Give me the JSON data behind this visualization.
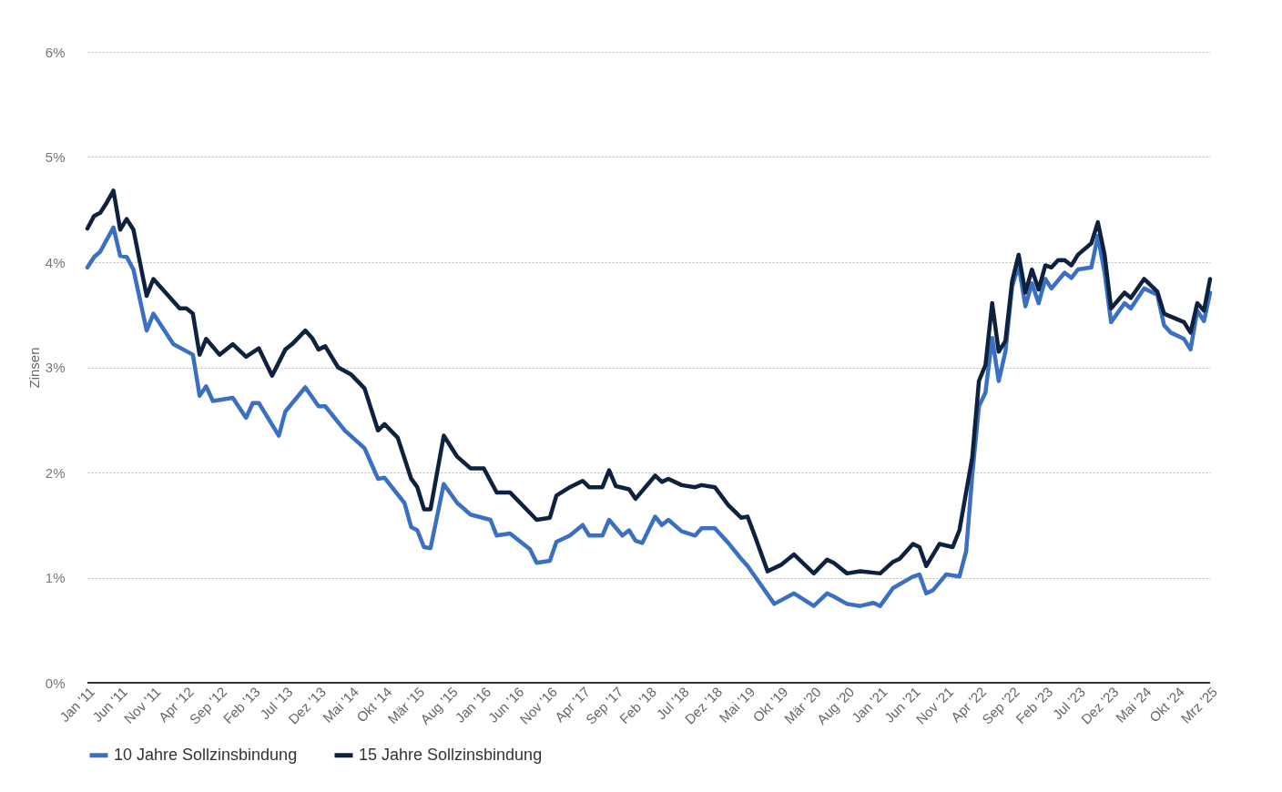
{
  "chart_data": {
    "type": "line",
    "ylabel": "Zinsen",
    "legend": "bottom",
    "grid": "y",
    "marker": "none",
    "line_style": "solid",
    "xlim": [
      "2011-01",
      "2025-03"
    ],
    "ylim": [
      0,
      6
    ],
    "yticks": [
      {
        "value": 0,
        "label": "0%"
      },
      {
        "value": 1,
        "label": "1%"
      },
      {
        "value": 2,
        "label": "2%"
      },
      {
        "value": 3,
        "label": "3%"
      },
      {
        "value": 4,
        "label": "4%"
      },
      {
        "value": 5,
        "label": "5%"
      },
      {
        "value": 6,
        "label": "6%"
      }
    ],
    "xticks": [
      {
        "value": "2011-01",
        "label": "Jan '11"
      },
      {
        "value": "2011-06",
        "label": "Jun '11"
      },
      {
        "value": "2011-11",
        "label": "Nov '11"
      },
      {
        "value": "2012-04",
        "label": "Apr '12"
      },
      {
        "value": "2012-09",
        "label": "Sep '12"
      },
      {
        "value": "2013-02",
        "label": "Feb '13"
      },
      {
        "value": "2013-07",
        "label": "Jul '13"
      },
      {
        "value": "2013-12",
        "label": "Dez '13"
      },
      {
        "value": "2014-05",
        "label": "Mai '14"
      },
      {
        "value": "2014-10",
        "label": "Okt '14"
      },
      {
        "value": "2015-03",
        "label": "Mär '15"
      },
      {
        "value": "2015-08",
        "label": "Aug '15"
      },
      {
        "value": "2016-01",
        "label": "Jan '16"
      },
      {
        "value": "2016-06",
        "label": "Jun '16"
      },
      {
        "value": "2016-11",
        "label": "Nov '16"
      },
      {
        "value": "2017-04",
        "label": "Apr '17"
      },
      {
        "value": "2017-09",
        "label": "Sep '17"
      },
      {
        "value": "2018-02",
        "label": "Feb '18"
      },
      {
        "value": "2018-07",
        "label": "Jul '18"
      },
      {
        "value": "2018-12",
        "label": "Dez '18"
      },
      {
        "value": "2019-05",
        "label": "Mai '19"
      },
      {
        "value": "2019-10",
        "label": "Okt '19"
      },
      {
        "value": "2020-03",
        "label": "Mär '20"
      },
      {
        "value": "2020-08",
        "label": "Aug '20"
      },
      {
        "value": "2021-01",
        "label": "Jan '21"
      },
      {
        "value": "2021-06",
        "label": "Jun '21"
      },
      {
        "value": "2021-11",
        "label": "Nov '21"
      },
      {
        "value": "2022-04",
        "label": "Apr '22"
      },
      {
        "value": "2022-09",
        "label": "Sep '22"
      },
      {
        "value": "2023-02",
        "label": "Feb '23"
      },
      {
        "value": "2023-07",
        "label": "Jul '23"
      },
      {
        "value": "2023-12",
        "label": "Dez '23"
      },
      {
        "value": "2024-05",
        "label": "Mai '24"
      },
      {
        "value": "2024-10",
        "label": "Okt '24"
      },
      {
        "value": "2025-03",
        "label": "Mrz '25"
      }
    ],
    "series": [
      {
        "name": "10 Jahre Sollzinsbindung",
        "color": "#3a6fc1",
        "x": [
          "2011-01",
          "2011-02",
          "2011-03",
          "2011-05",
          "2011-06",
          "2011-07",
          "2011-08",
          "2011-10",
          "2011-11",
          "2012-02",
          "2012-05",
          "2012-06",
          "2012-07",
          "2012-08",
          "2012-11",
          "2013-01",
          "2013-02",
          "2013-03",
          "2013-06",
          "2013-07",
          "2013-10",
          "2013-12",
          "2014-01",
          "2014-04",
          "2014-07",
          "2014-09",
          "2014-10",
          "2015-01",
          "2015-02",
          "2015-03",
          "2015-04",
          "2015-05",
          "2015-07",
          "2015-09",
          "2015-11",
          "2016-02",
          "2016-03",
          "2016-05",
          "2016-08",
          "2016-09",
          "2016-11",
          "2016-12",
          "2017-02",
          "2017-04",
          "2017-05",
          "2017-07",
          "2017-08",
          "2017-10",
          "2017-11",
          "2017-12",
          "2018-01",
          "2018-03",
          "2018-04",
          "2018-05",
          "2018-07",
          "2018-09",
          "2018-10",
          "2018-12",
          "2019-02",
          "2019-04",
          "2019-05",
          "2019-09",
          "2019-12",
          "2020-03",
          "2020-05",
          "2020-06",
          "2020-08",
          "2020-10",
          "2020-12",
          "2021-01",
          "2021-03",
          "2021-06",
          "2021-07",
          "2021-08",
          "2021-09",
          "2021-11",
          "2022-01",
          "2022-02",
          "2022-03",
          "2022-04",
          "2022-05",
          "2022-06",
          "2022-07",
          "2022-08",
          "2022-09",
          "2022-10",
          "2022-11",
          "2022-12",
          "2023-01",
          "2023-02",
          "2023-03",
          "2023-05",
          "2023-06",
          "2023-07",
          "2023-09",
          "2023-10",
          "2023-11",
          "2023-12",
          "2024-02",
          "2024-03",
          "2024-05",
          "2024-07",
          "2024-08",
          "2024-09",
          "2024-11",
          "2024-12",
          "2025-01",
          "2025-02",
          "2025-03"
        ],
        "values": [
          3.95,
          4.05,
          4.1,
          4.33,
          4.06,
          4.05,
          3.93,
          3.35,
          3.51,
          3.22,
          3.12,
          2.73,
          2.82,
          2.68,
          2.71,
          2.52,
          2.66,
          2.66,
          2.35,
          2.58,
          2.81,
          2.63,
          2.63,
          2.4,
          2.23,
          1.94,
          1.95,
          1.71,
          1.48,
          1.45,
          1.29,
          1.28,
          1.89,
          1.71,
          1.6,
          1.55,
          1.4,
          1.42,
          1.27,
          1.14,
          1.16,
          1.34,
          1.4,
          1.5,
          1.4,
          1.4,
          1.55,
          1.4,
          1.45,
          1.35,
          1.33,
          1.58,
          1.5,
          1.55,
          1.44,
          1.4,
          1.47,
          1.47,
          1.33,
          1.18,
          1.11,
          0.75,
          0.85,
          0.73,
          0.85,
          0.82,
          0.75,
          0.73,
          0.76,
          0.73,
          0.9,
          1.01,
          1.03,
          0.85,
          0.88,
          1.03,
          1.01,
          1.25,
          1.97,
          2.63,
          2.76,
          3.28,
          2.87,
          3.15,
          3.77,
          3.97,
          3.58,
          3.8,
          3.61,
          3.84,
          3.75,
          3.9,
          3.85,
          3.93,
          3.95,
          4.25,
          3.9,
          3.43,
          3.61,
          3.56,
          3.75,
          3.69,
          3.4,
          3.33,
          3.27,
          3.17,
          3.54,
          3.44,
          3.71
        ]
      },
      {
        "name": "15 Jahre Sollzinsbindung",
        "color": "#0e2240",
        "x": [
          "2011-01",
          "2011-02",
          "2011-03",
          "2011-04",
          "2011-05",
          "2011-06",
          "2011-07",
          "2011-08",
          "2011-10",
          "2011-11",
          "2011-12",
          "2012-03",
          "2012-04",
          "2012-05",
          "2012-06",
          "2012-07",
          "2012-09",
          "2012-11",
          "2013-01",
          "2013-03",
          "2013-05",
          "2013-07",
          "2013-08",
          "2013-10",
          "2013-11",
          "2013-12",
          "2014-01",
          "2014-03",
          "2014-05",
          "2014-07",
          "2014-09",
          "2014-10",
          "2014-12",
          "2015-02",
          "2015-03",
          "2015-04",
          "2015-05",
          "2015-07",
          "2015-09",
          "2015-11",
          "2016-01",
          "2016-03",
          "2016-05",
          "2016-09",
          "2016-11",
          "2016-12",
          "2017-02",
          "2017-04",
          "2017-05",
          "2017-07",
          "2017-08",
          "2017-09",
          "2017-11",
          "2017-12",
          "2018-03",
          "2018-04",
          "2018-05",
          "2018-07",
          "2018-09",
          "2018-10",
          "2018-12",
          "2019-02",
          "2019-04",
          "2019-05",
          "2019-06",
          "2019-08",
          "2019-10",
          "2019-12",
          "2020-03",
          "2020-05",
          "2020-06",
          "2020-08",
          "2020-10",
          "2021-01",
          "2021-03",
          "2021-04",
          "2021-06",
          "2021-07",
          "2021-08",
          "2021-10",
          "2021-12",
          "2022-01",
          "2022-03",
          "2022-04",
          "2022-05",
          "2022-06",
          "2022-07",
          "2022-08",
          "2022-09",
          "2022-10",
          "2022-11",
          "2022-12",
          "2023-01",
          "2023-02",
          "2023-03",
          "2023-04",
          "2023-05",
          "2023-06",
          "2023-07",
          "2023-09",
          "2023-10",
          "2023-11",
          "2023-12",
          "2024-02",
          "2024-03",
          "2024-05",
          "2024-07",
          "2024-08",
          "2024-11",
          "2024-12",
          "2025-01",
          "2025-02",
          "2025-03"
        ],
        "values": [
          4.32,
          4.44,
          4.47,
          4.57,
          4.68,
          4.31,
          4.41,
          4.31,
          3.68,
          3.84,
          3.77,
          3.56,
          3.56,
          3.51,
          3.12,
          3.27,
          3.12,
          3.22,
          3.1,
          3.18,
          2.92,
          3.17,
          3.22,
          3.35,
          3.28,
          3.17,
          3.2,
          3.0,
          2.93,
          2.8,
          2.4,
          2.46,
          2.33,
          1.94,
          1.86,
          1.65,
          1.65,
          2.35,
          2.15,
          2.04,
          2.04,
          1.81,
          1.81,
          1.55,
          1.57,
          1.78,
          1.86,
          1.92,
          1.86,
          1.86,
          2.02,
          1.87,
          1.84,
          1.75,
          1.97,
          1.91,
          1.94,
          1.88,
          1.86,
          1.88,
          1.86,
          1.69,
          1.57,
          1.58,
          1.41,
          1.06,
          1.12,
          1.22,
          1.04,
          1.17,
          1.14,
          1.04,
          1.06,
          1.04,
          1.15,
          1.18,
          1.32,
          1.29,
          1.11,
          1.32,
          1.29,
          1.45,
          2.14,
          2.87,
          3.02,
          3.61,
          3.15,
          3.25,
          3.82,
          4.07,
          3.71,
          3.93,
          3.74,
          3.97,
          3.95,
          4.02,
          4.02,
          3.97,
          4.07,
          4.18,
          4.38,
          4.07,
          3.56,
          3.71,
          3.66,
          3.84,
          3.72,
          3.51,
          3.43,
          3.33,
          3.61,
          3.54,
          3.84
        ]
      }
    ]
  }
}
